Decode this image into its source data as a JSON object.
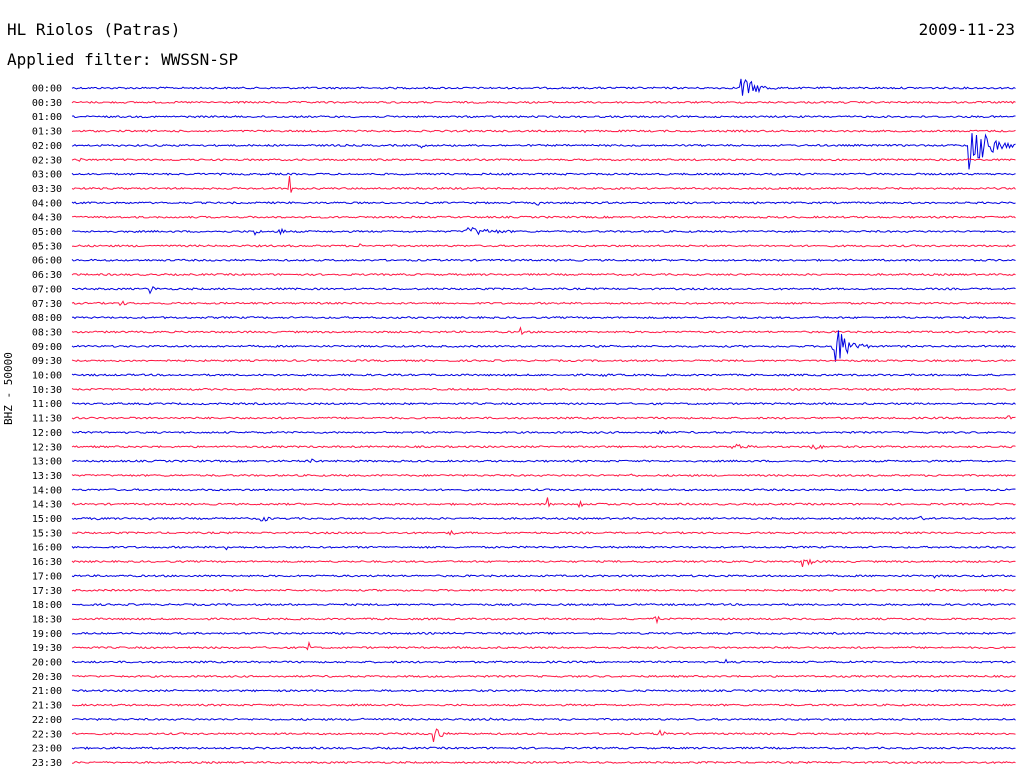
{
  "header": {
    "station": "HL Riolos (Patras)",
    "date": "2009-11-23",
    "filter": "Applied filter: WWSSN-SP"
  },
  "side_label": "BHZ - 50000",
  "colors": {
    "even_row": "#0000e0",
    "odd_row": "#ff1744"
  },
  "chart_data": {
    "type": "line",
    "title": "HL Riolos (Patras)",
    "subtitle": "Applied filter: WWSSN-SP",
    "ylabel": "BHZ - 50000",
    "xlabel": "",
    "rows": [
      "00:00",
      "00:30",
      "01:00",
      "01:30",
      "02:00",
      "02:30",
      "03:00",
      "03:30",
      "04:00",
      "04:30",
      "05:00",
      "05:30",
      "06:00",
      "06:30",
      "07:00",
      "07:30",
      "08:00",
      "08:30",
      "09:00",
      "09:30",
      "10:00",
      "10:30",
      "11:00",
      "11:30",
      "12:00",
      "12:30",
      "13:00",
      "13:30",
      "14:00",
      "14:30",
      "15:00",
      "15:30",
      "16:00",
      "16:30",
      "17:00",
      "17:30",
      "18:00",
      "18:30",
      "19:00",
      "19:30",
      "20:00",
      "20:30",
      "21:00",
      "21:30",
      "22:00",
      "22:30",
      "23:00",
      "23:30"
    ],
    "row_minutes": 30,
    "events": [
      {
        "row": "00:00",
        "minute": 21.2,
        "amp": 14,
        "dur": 1.5
      },
      {
        "row": "01:30",
        "minute": 16.2,
        "amp": 3,
        "dur": 0.6
      },
      {
        "row": "02:00",
        "minute": 8.2,
        "amp": 2,
        "dur": 0.4
      },
      {
        "row": "02:00",
        "minute": 11.1,
        "amp": 5,
        "dur": 0.3
      },
      {
        "row": "02:00",
        "minute": 28.5,
        "amp": 30,
        "dur": 1.6
      },
      {
        "row": "02:30",
        "minute": 0.2,
        "amp": 3,
        "dur": 0.6
      },
      {
        "row": "03:30",
        "minute": 6.9,
        "amp": 15,
        "dur": 0.2
      },
      {
        "row": "04:00",
        "minute": 14.8,
        "amp": 4,
        "dur": 0.3
      },
      {
        "row": "05:00",
        "minute": 5.8,
        "amp": 6,
        "dur": 0.4
      },
      {
        "row": "05:00",
        "minute": 6.6,
        "amp": 6,
        "dur": 0.4
      },
      {
        "row": "05:00",
        "minute": 12.5,
        "amp": 5,
        "dur": 3.0
      },
      {
        "row": "05:30",
        "minute": 9.1,
        "amp": 6,
        "dur": 0.2
      },
      {
        "row": "07:00",
        "minute": 2.5,
        "amp": 10,
        "dur": 0.2
      },
      {
        "row": "07:30",
        "minute": 1.5,
        "amp": 3,
        "dur": 1.0
      },
      {
        "row": "08:30",
        "minute": 14.2,
        "amp": 11,
        "dur": 0.2
      },
      {
        "row": "09:00",
        "minute": 24.2,
        "amp": 26,
        "dur": 1.2
      },
      {
        "row": "10:00",
        "minute": 16.9,
        "amp": 3,
        "dur": 0.6
      },
      {
        "row": "11:30",
        "minute": 29.7,
        "amp": 4,
        "dur": 0.6
      },
      {
        "row": "12:00",
        "minute": 18.6,
        "amp": 3,
        "dur": 0.8
      },
      {
        "row": "12:30",
        "minute": 21.0,
        "amp": 4,
        "dur": 1.4
      },
      {
        "row": "12:30",
        "minute": 23.5,
        "amp": 4,
        "dur": 1.1
      },
      {
        "row": "13:00",
        "minute": 7.6,
        "amp": 3,
        "dur": 0.6
      },
      {
        "row": "13:30",
        "minute": 17.7,
        "amp": 6,
        "dur": 0.2
      },
      {
        "row": "14:30",
        "minute": 15.1,
        "amp": 11,
        "dur": 0.2
      },
      {
        "row": "14:30",
        "minute": 16.1,
        "amp": 12,
        "dur": 0.2
      },
      {
        "row": "14:30",
        "minute": 16.8,
        "amp": 10,
        "dur": 0.2
      },
      {
        "row": "15:00",
        "minute": 0.8,
        "amp": 4,
        "dur": 0.2
      },
      {
        "row": "15:00",
        "minute": 2.5,
        "amp": 4,
        "dur": 0.3
      },
      {
        "row": "15:00",
        "minute": 6.0,
        "amp": 10,
        "dur": 0.4
      },
      {
        "row": "15:00",
        "minute": 26.9,
        "amp": 4,
        "dur": 0.5
      },
      {
        "row": "15:30",
        "minute": 12.0,
        "amp": 5,
        "dur": 0.4
      },
      {
        "row": "16:00",
        "minute": 4.9,
        "amp": 6,
        "dur": 0.3
      },
      {
        "row": "16:30",
        "minute": 23.2,
        "amp": 6,
        "dur": 1.0
      },
      {
        "row": "17:00",
        "minute": 27.4,
        "amp": 4,
        "dur": 0.1
      },
      {
        "row": "18:30",
        "minute": 18.5,
        "amp": 10,
        "dur": 0.3
      },
      {
        "row": "19:30",
        "minute": 7.5,
        "amp": 7,
        "dur": 0.3
      },
      {
        "row": "20:00",
        "minute": 20.8,
        "amp": 4,
        "dur": 0.2
      },
      {
        "row": "22:00",
        "minute": 9.2,
        "amp": 5,
        "dur": 0.2
      },
      {
        "row": "22:00",
        "minute": 13.3,
        "amp": 7,
        "dur": 0.2
      },
      {
        "row": "22:30",
        "minute": 11.5,
        "amp": 12,
        "dur": 0.6
      },
      {
        "row": "22:30",
        "minute": 18.6,
        "amp": 5,
        "dur": 0.8
      }
    ]
  }
}
